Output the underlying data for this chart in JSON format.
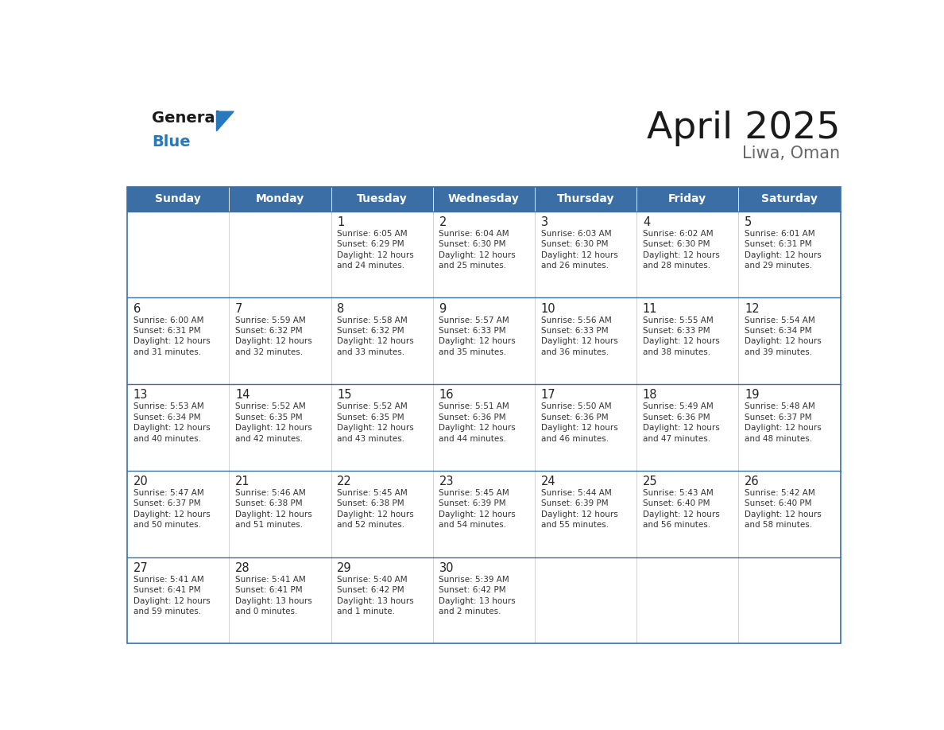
{
  "title": "April 2025",
  "subtitle": "Liwa, Oman",
  "days_of_week": [
    "Sunday",
    "Monday",
    "Tuesday",
    "Wednesday",
    "Thursday",
    "Friday",
    "Saturday"
  ],
  "header_bg": "#3b6ea5",
  "header_text": "#ffffff",
  "cell_bg": "#ffffff",
  "row_separator_color": "#3b6ea5",
  "col_separator_color": "#cccccc",
  "outer_border_color": "#3b6ea5",
  "text_color": "#333333",
  "day_num_color": "#222222",
  "title_color": "#1a1a1a",
  "subtitle_color": "#666666",
  "logo_black": "#1a1a1a",
  "logo_blue": "#2878be",
  "triangle_color": "#2878be",
  "weeks": [
    [
      {
        "day": null,
        "sunrise": null,
        "sunset": null,
        "daylight": null
      },
      {
        "day": null,
        "sunrise": null,
        "sunset": null,
        "daylight": null
      },
      {
        "day": 1,
        "sunrise": "6:05 AM",
        "sunset": "6:29 PM",
        "daylight": "12 hours\nand 24 minutes."
      },
      {
        "day": 2,
        "sunrise": "6:04 AM",
        "sunset": "6:30 PM",
        "daylight": "12 hours\nand 25 minutes."
      },
      {
        "day": 3,
        "sunrise": "6:03 AM",
        "sunset": "6:30 PM",
        "daylight": "12 hours\nand 26 minutes."
      },
      {
        "day": 4,
        "sunrise": "6:02 AM",
        "sunset": "6:30 PM",
        "daylight": "12 hours\nand 28 minutes."
      },
      {
        "day": 5,
        "sunrise": "6:01 AM",
        "sunset": "6:31 PM",
        "daylight": "12 hours\nand 29 minutes."
      }
    ],
    [
      {
        "day": 6,
        "sunrise": "6:00 AM",
        "sunset": "6:31 PM",
        "daylight": "12 hours\nand 31 minutes."
      },
      {
        "day": 7,
        "sunrise": "5:59 AM",
        "sunset": "6:32 PM",
        "daylight": "12 hours\nand 32 minutes."
      },
      {
        "day": 8,
        "sunrise": "5:58 AM",
        "sunset": "6:32 PM",
        "daylight": "12 hours\nand 33 minutes."
      },
      {
        "day": 9,
        "sunrise": "5:57 AM",
        "sunset": "6:33 PM",
        "daylight": "12 hours\nand 35 minutes."
      },
      {
        "day": 10,
        "sunrise": "5:56 AM",
        "sunset": "6:33 PM",
        "daylight": "12 hours\nand 36 minutes."
      },
      {
        "day": 11,
        "sunrise": "5:55 AM",
        "sunset": "6:33 PM",
        "daylight": "12 hours\nand 38 minutes."
      },
      {
        "day": 12,
        "sunrise": "5:54 AM",
        "sunset": "6:34 PM",
        "daylight": "12 hours\nand 39 minutes."
      }
    ],
    [
      {
        "day": 13,
        "sunrise": "5:53 AM",
        "sunset": "6:34 PM",
        "daylight": "12 hours\nand 40 minutes."
      },
      {
        "day": 14,
        "sunrise": "5:52 AM",
        "sunset": "6:35 PM",
        "daylight": "12 hours\nand 42 minutes."
      },
      {
        "day": 15,
        "sunrise": "5:52 AM",
        "sunset": "6:35 PM",
        "daylight": "12 hours\nand 43 minutes."
      },
      {
        "day": 16,
        "sunrise": "5:51 AM",
        "sunset": "6:36 PM",
        "daylight": "12 hours\nand 44 minutes."
      },
      {
        "day": 17,
        "sunrise": "5:50 AM",
        "sunset": "6:36 PM",
        "daylight": "12 hours\nand 46 minutes."
      },
      {
        "day": 18,
        "sunrise": "5:49 AM",
        "sunset": "6:36 PM",
        "daylight": "12 hours\nand 47 minutes."
      },
      {
        "day": 19,
        "sunrise": "5:48 AM",
        "sunset": "6:37 PM",
        "daylight": "12 hours\nand 48 minutes."
      }
    ],
    [
      {
        "day": 20,
        "sunrise": "5:47 AM",
        "sunset": "6:37 PM",
        "daylight": "12 hours\nand 50 minutes."
      },
      {
        "day": 21,
        "sunrise": "5:46 AM",
        "sunset": "6:38 PM",
        "daylight": "12 hours\nand 51 minutes."
      },
      {
        "day": 22,
        "sunrise": "5:45 AM",
        "sunset": "6:38 PM",
        "daylight": "12 hours\nand 52 minutes."
      },
      {
        "day": 23,
        "sunrise": "5:45 AM",
        "sunset": "6:39 PM",
        "daylight": "12 hours\nand 54 minutes."
      },
      {
        "day": 24,
        "sunrise": "5:44 AM",
        "sunset": "6:39 PM",
        "daylight": "12 hours\nand 55 minutes."
      },
      {
        "day": 25,
        "sunrise": "5:43 AM",
        "sunset": "6:40 PM",
        "daylight": "12 hours\nand 56 minutes."
      },
      {
        "day": 26,
        "sunrise": "5:42 AM",
        "sunset": "6:40 PM",
        "daylight": "12 hours\nand 58 minutes."
      }
    ],
    [
      {
        "day": 27,
        "sunrise": "5:41 AM",
        "sunset": "6:41 PM",
        "daylight": "12 hours\nand 59 minutes."
      },
      {
        "day": 28,
        "sunrise": "5:41 AM",
        "sunset": "6:41 PM",
        "daylight": "13 hours\nand 0 minutes."
      },
      {
        "day": 29,
        "sunrise": "5:40 AM",
        "sunset": "6:42 PM",
        "daylight": "13 hours\nand 1 minute."
      },
      {
        "day": 30,
        "sunrise": "5:39 AM",
        "sunset": "6:42 PM",
        "daylight": "13 hours\nand 2 minutes."
      },
      {
        "day": null,
        "sunrise": null,
        "sunset": null,
        "daylight": null
      },
      {
        "day": null,
        "sunrise": null,
        "sunset": null,
        "daylight": null
      },
      {
        "day": null,
        "sunrise": null,
        "sunset": null,
        "daylight": null
      }
    ]
  ]
}
